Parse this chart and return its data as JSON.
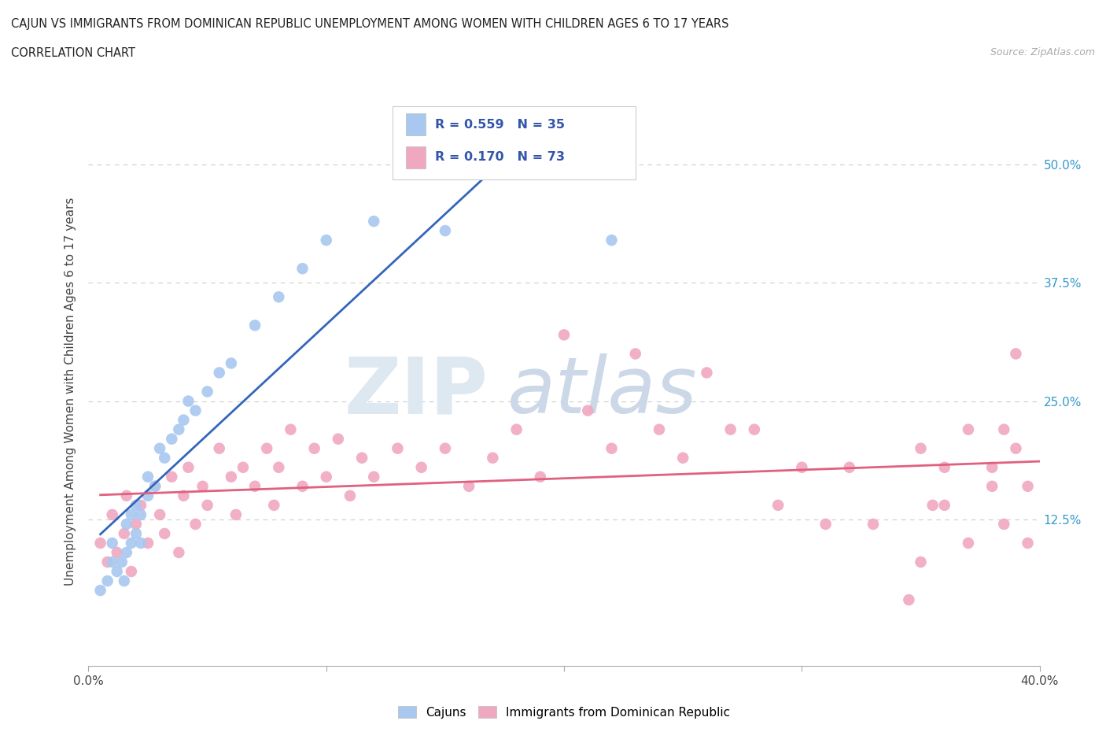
{
  "title_line1": "CAJUN VS IMMIGRANTS FROM DOMINICAN REPUBLIC UNEMPLOYMENT AMONG WOMEN WITH CHILDREN AGES 6 TO 17 YEARS",
  "title_line2": "CORRELATION CHART",
  "source": "Source: ZipAtlas.com",
  "ylabel": "Unemployment Among Women with Children Ages 6 to 17 years",
  "xlim": [
    0.0,
    0.4
  ],
  "ylim": [
    -0.03,
    0.55
  ],
  "cajun_color": "#a8c8f0",
  "dominican_color": "#f0a8c0",
  "cajun_line_color": "#3366bb",
  "dominican_line_color": "#e06080",
  "background_color": "#ffffff",
  "grid_color": "#cccccc",
  "cajun_scatter_x": [
    0.005,
    0.008,
    0.01,
    0.01,
    0.012,
    0.014,
    0.015,
    0.016,
    0.016,
    0.018,
    0.018,
    0.02,
    0.02,
    0.022,
    0.022,
    0.025,
    0.025,
    0.028,
    0.03,
    0.032,
    0.035,
    0.038,
    0.04,
    0.042,
    0.045,
    0.05,
    0.055,
    0.06,
    0.07,
    0.08,
    0.09,
    0.1,
    0.12,
    0.15,
    0.22
  ],
  "cajun_scatter_y": [
    0.05,
    0.06,
    0.08,
    0.1,
    0.07,
    0.08,
    0.06,
    0.09,
    0.12,
    0.1,
    0.13,
    0.11,
    0.14,
    0.13,
    0.1,
    0.15,
    0.17,
    0.16,
    0.2,
    0.19,
    0.21,
    0.22,
    0.23,
    0.25,
    0.24,
    0.26,
    0.28,
    0.29,
    0.33,
    0.36,
    0.39,
    0.42,
    0.44,
    0.43,
    0.42
  ],
  "dominican_scatter_x": [
    0.005,
    0.008,
    0.01,
    0.012,
    0.015,
    0.016,
    0.018,
    0.02,
    0.022,
    0.025,
    0.028,
    0.03,
    0.032,
    0.035,
    0.038,
    0.04,
    0.042,
    0.045,
    0.048,
    0.05,
    0.055,
    0.06,
    0.062,
    0.065,
    0.07,
    0.075,
    0.078,
    0.08,
    0.085,
    0.09,
    0.095,
    0.1,
    0.105,
    0.11,
    0.115,
    0.12,
    0.13,
    0.14,
    0.15,
    0.16,
    0.17,
    0.18,
    0.19,
    0.2,
    0.21,
    0.22,
    0.23,
    0.24,
    0.25,
    0.26,
    0.27,
    0.28,
    0.29,
    0.3,
    0.31,
    0.32,
    0.33,
    0.35,
    0.36,
    0.37,
    0.38,
    0.385,
    0.39,
    0.395,
    0.395,
    0.39,
    0.385,
    0.38,
    0.37,
    0.36,
    0.355,
    0.35,
    0.345
  ],
  "dominican_scatter_y": [
    0.1,
    0.08,
    0.13,
    0.09,
    0.11,
    0.15,
    0.07,
    0.12,
    0.14,
    0.1,
    0.16,
    0.13,
    0.11,
    0.17,
    0.09,
    0.15,
    0.18,
    0.12,
    0.16,
    0.14,
    0.2,
    0.17,
    0.13,
    0.18,
    0.16,
    0.2,
    0.14,
    0.18,
    0.22,
    0.16,
    0.2,
    0.17,
    0.21,
    0.15,
    0.19,
    0.17,
    0.2,
    0.18,
    0.2,
    0.16,
    0.19,
    0.22,
    0.17,
    0.32,
    0.24,
    0.2,
    0.3,
    0.22,
    0.19,
    0.28,
    0.22,
    0.22,
    0.14,
    0.18,
    0.12,
    0.18,
    0.12,
    0.2,
    0.14,
    0.22,
    0.18,
    0.12,
    0.2,
    0.16,
    0.1,
    0.3,
    0.22,
    0.16,
    0.1,
    0.18,
    0.14,
    0.08,
    0.04
  ]
}
